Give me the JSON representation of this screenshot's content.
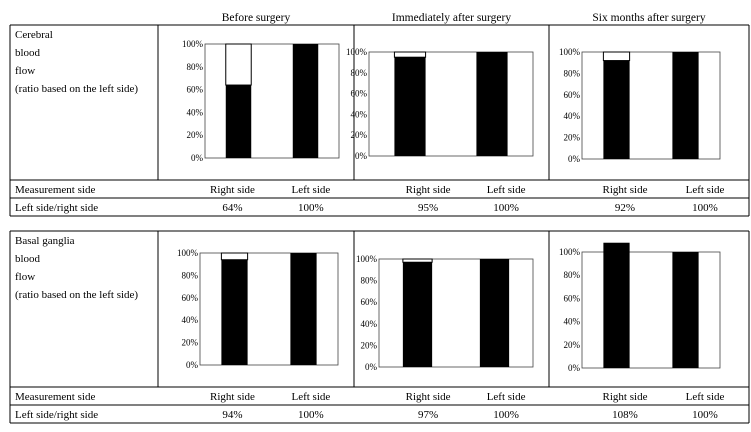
{
  "column_headers": [
    "Before surgery",
    "Immediately after surgery",
    "Six months after surgery"
  ],
  "sections": [
    {
      "title_lines": [
        "Cerebral",
        "blood",
        "flow",
        "(ratio based on the left side)"
      ],
      "row_labels": [
        "Measurement side",
        "Left side/right side"
      ],
      "side_labels": [
        "Right side",
        "Left side"
      ],
      "panels": [
        {
          "values": [
            "64%",
            "100%"
          ]
        },
        {
          "values": [
            "95%",
            "100%"
          ]
        },
        {
          "values": [
            "92%",
            "100%"
          ]
        }
      ]
    },
    {
      "title_lines": [
        "Basal ganglia",
        "blood",
        "flow",
        "(ratio based on the left side)"
      ],
      "row_labels": [
        "Measurement side",
        "Left side/right side"
      ],
      "side_labels": [
        "Right side",
        "Left side"
      ],
      "panels": [
        {
          "values": [
            "94%",
            "100%"
          ]
        },
        {
          "values": [
            "97%",
            "100%"
          ]
        },
        {
          "values": [
            "108%",
            "100%"
          ]
        }
      ]
    }
  ],
  "chart_data": [
    {
      "type": "bar",
      "categories": [
        "Right side",
        "Left side"
      ],
      "values": [
        64,
        100
      ],
      "ylim": [
        0,
        100
      ],
      "y_ticks": [
        "0%",
        "20%",
        "40%",
        "60%",
        "80%",
        "100%"
      ],
      "reference": 100
    },
    {
      "type": "bar",
      "categories": [
        "Right side",
        "Left side"
      ],
      "values": [
        95,
        100
      ],
      "ylim": [
        0,
        100
      ],
      "y_ticks": [
        "0%",
        "20%",
        "40%",
        "60%",
        "80%",
        "100%"
      ],
      "reference": 100
    },
    {
      "type": "bar",
      "categories": [
        "Right side",
        "Left side"
      ],
      "values": [
        92,
        100
      ],
      "ylim": [
        0,
        100
      ],
      "y_ticks": [
        "0%",
        "20%",
        "40%",
        "60%",
        "80%",
        "100%"
      ],
      "reference": 100
    },
    {
      "type": "bar",
      "categories": [
        "Right side",
        "Left side"
      ],
      "values": [
        94,
        100
      ],
      "ylim": [
        0,
        100
      ],
      "y_ticks": [
        "0%",
        "20%",
        "40%",
        "60%",
        "80%",
        "100%"
      ],
      "reference": 100
    },
    {
      "type": "bar",
      "categories": [
        "Right side",
        "Left side"
      ],
      "values": [
        97,
        100
      ],
      "ylim": [
        0,
        100
      ],
      "y_ticks": [
        "0%",
        "20%",
        "40%",
        "60%",
        "80%",
        "100%"
      ],
      "reference": 100
    },
    {
      "type": "bar",
      "categories": [
        "Right side",
        "Left side"
      ],
      "values": [
        108,
        100
      ],
      "ylim": [
        0,
        100
      ],
      "y_ticks": [
        "0%",
        "20%",
        "40%",
        "60%",
        "80%",
        "100%"
      ],
      "reference": 100
    }
  ]
}
